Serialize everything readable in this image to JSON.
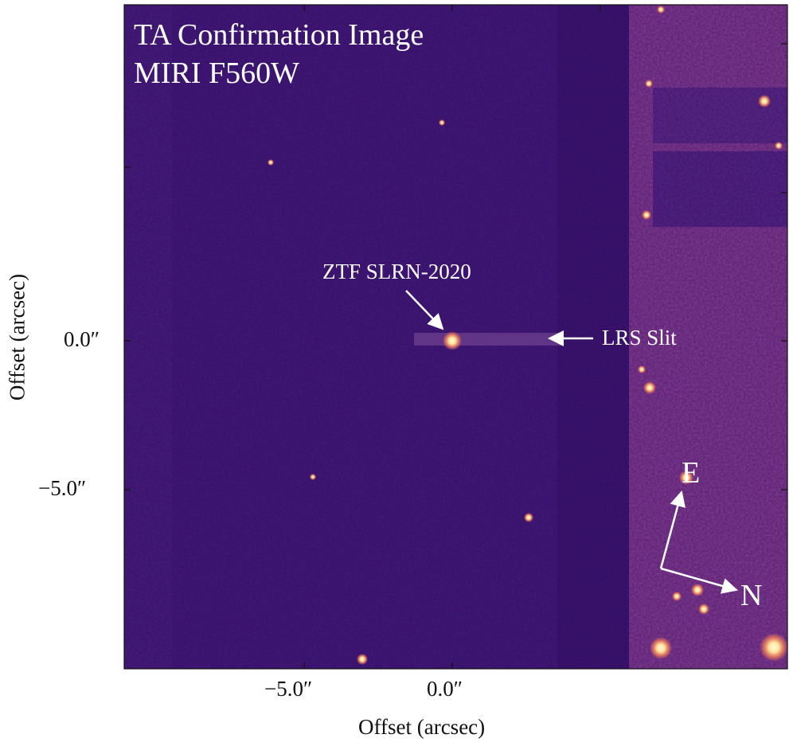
{
  "image": {
    "title_line1": "TA Confirmation Image",
    "title_line2": "MIRI F560W",
    "colormap": "magma",
    "colors": {
      "background_dark": "#3b1d7a",
      "field_medium": "#4a2a84",
      "slit_region": "#6a3c8c",
      "bright_region": "#7e4092",
      "star_core": "#fff6c8",
      "star_glow": "#f07a5a",
      "annotation": "#ffffff"
    }
  },
  "annotations": {
    "target_label": "ZTF SLRN-2020",
    "slit_label": "LRS Slit",
    "compass_east": "E",
    "compass_north": "N"
  },
  "axes": {
    "xlabel": "Offset (arcsec)",
    "ylabel": "Offset (arcsec)",
    "xticks": [
      "−5.0″",
      "0.0″"
    ],
    "yticks": [
      "0.0″",
      "−5.0″"
    ]
  }
}
